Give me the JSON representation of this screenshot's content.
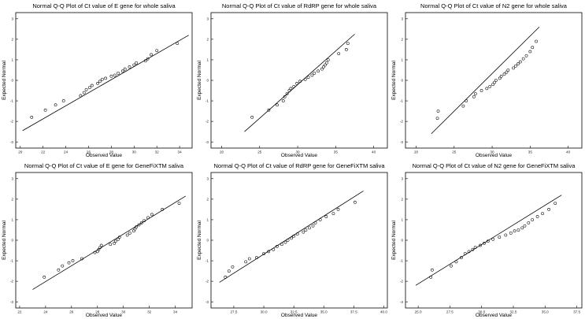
{
  "chart_data": [
    {
      "type": "scatter",
      "title": "Normal Q-Q Plot of Ct value of E gene for whole saliva",
      "xlabel": "Observed Value",
      "ylabel": "Expected Normal",
      "xlim": [
        19.6,
        35.1
      ],
      "ylim": [
        -3.3,
        3.3
      ],
      "xticks": [
        20,
        22,
        24,
        26,
        28,
        30,
        32,
        34
      ],
      "yticks": [
        3,
        2,
        1,
        0,
        -1,
        -2,
        -3
      ],
      "ytick_labels": [
        "3",
        "2",
        "1",
        "0",
        "-1",
        "-2",
        "-3"
      ],
      "line": {
        "x": [
          20.2,
          34.8
        ],
        "y": [
          -2.45,
          2.2
        ]
      },
      "points": [
        {
          "x": 21.0,
          "y": -1.8
        },
        {
          "x": 22.2,
          "y": -1.45
        },
        {
          "x": 23.1,
          "y": -1.2
        },
        {
          "x": 23.8,
          "y": -1.0
        },
        {
          "x": 25.3,
          "y": -0.75
        },
        {
          "x": 25.6,
          "y": -0.6
        },
        {
          "x": 25.8,
          "y": -0.45
        },
        {
          "x": 26.1,
          "y": -0.35
        },
        {
          "x": 26.3,
          "y": -0.25
        },
        {
          "x": 26.8,
          "y": -0.15
        },
        {
          "x": 27.0,
          "y": -0.05
        },
        {
          "x": 27.2,
          "y": 0.05
        },
        {
          "x": 27.5,
          "y": 0.1
        },
        {
          "x": 28.0,
          "y": 0.2
        },
        {
          "x": 28.3,
          "y": 0.25
        },
        {
          "x": 28.6,
          "y": 0.35
        },
        {
          "x": 29.0,
          "y": 0.45
        },
        {
          "x": 29.2,
          "y": 0.55
        },
        {
          "x": 29.6,
          "y": 0.65
        },
        {
          "x": 30.0,
          "y": 0.75
        },
        {
          "x": 30.2,
          "y": 0.85
        },
        {
          "x": 31.0,
          "y": 0.95
        },
        {
          "x": 31.2,
          "y": 1.05
        },
        {
          "x": 31.5,
          "y": 1.25
        },
        {
          "x": 32.0,
          "y": 1.45
        },
        {
          "x": 33.8,
          "y": 1.8
        }
      ]
    },
    {
      "type": "scatter",
      "title": "Normal Q-Q Plot of Ct value of RdRP gene for whole saliva",
      "xlabel": "Observed Value",
      "ylabel": "Expected Normal",
      "xlim": [
        18.6,
        41.8
      ],
      "ylim": [
        -3.3,
        3.3
      ],
      "xticks": [
        20,
        25,
        30,
        35,
        40
      ],
      "yticks": [
        3,
        2,
        1,
        0,
        -1,
        -2,
        -3
      ],
      "ytick_labels": [
        "3",
        "2",
        "1",
        "0",
        "-1",
        "-2",
        "-3"
      ],
      "line": {
        "x": [
          23.0,
          37.5
        ],
        "y": [
          -2.5,
          2.25
        ]
      },
      "points": [
        {
          "x": 24.0,
          "y": -1.8
        },
        {
          "x": 26.2,
          "y": -1.45
        },
        {
          "x": 27.3,
          "y": -1.2
        },
        {
          "x": 28.1,
          "y": -1.0
        },
        {
          "x": 28.3,
          "y": -0.8
        },
        {
          "x": 28.6,
          "y": -0.65
        },
        {
          "x": 28.9,
          "y": -0.5
        },
        {
          "x": 29.1,
          "y": -0.4
        },
        {
          "x": 29.5,
          "y": -0.3
        },
        {
          "x": 29.9,
          "y": -0.15
        },
        {
          "x": 30.3,
          "y": -0.05
        },
        {
          "x": 31.0,
          "y": 0.05
        },
        {
          "x": 31.4,
          "y": 0.15
        },
        {
          "x": 31.9,
          "y": 0.25
        },
        {
          "x": 32.2,
          "y": 0.35
        },
        {
          "x": 32.7,
          "y": 0.45
        },
        {
          "x": 33.2,
          "y": 0.55
        },
        {
          "x": 33.4,
          "y": 0.65
        },
        {
          "x": 33.6,
          "y": 0.75
        },
        {
          "x": 33.8,
          "y": 0.85
        },
        {
          "x": 34.0,
          "y": 1.0
        },
        {
          "x": 35.4,
          "y": 1.3
        },
        {
          "x": 36.4,
          "y": 1.5
        },
        {
          "x": 36.6,
          "y": 1.8
        }
      ]
    },
    {
      "type": "scatter",
      "title": "Normal Q-Q Plot of Ct value of N2 gene for whole saliva",
      "xlabel": "Observed Value",
      "ylabel": "Expected Normal",
      "xlim": [
        18.6,
        41.8
      ],
      "ylim": [
        -3.3,
        3.3
      ],
      "xticks": [
        20,
        25,
        30,
        35,
        40
      ],
      "yticks": [
        3,
        2,
        1,
        0,
        -1,
        -2,
        -3
      ],
      "ytick_labels": [
        "3",
        "2",
        "1",
        "0",
        "-1",
        "-2",
        "-3"
      ],
      "line": {
        "x": [
          22.0,
          36.2
        ],
        "y": [
          -2.6,
          2.6
        ]
      },
      "points": [
        {
          "x": 22.8,
          "y": -1.85
        },
        {
          "x": 22.9,
          "y": -1.5
        },
        {
          "x": 26.2,
          "y": -1.25
        },
        {
          "x": 26.6,
          "y": -1.0
        },
        {
          "x": 27.6,
          "y": -0.8
        },
        {
          "x": 27.8,
          "y": -0.65
        },
        {
          "x": 28.6,
          "y": -0.5
        },
        {
          "x": 29.3,
          "y": -0.4
        },
        {
          "x": 29.7,
          "y": -0.3
        },
        {
          "x": 30.1,
          "y": -0.2
        },
        {
          "x": 30.3,
          "y": -0.1
        },
        {
          "x": 30.5,
          "y": 0.0
        },
        {
          "x": 31.0,
          "y": 0.1
        },
        {
          "x": 31.2,
          "y": 0.2
        },
        {
          "x": 31.6,
          "y": 0.3
        },
        {
          "x": 31.9,
          "y": 0.4
        },
        {
          "x": 32.1,
          "y": 0.5
        },
        {
          "x": 32.8,
          "y": 0.6
        },
        {
          "x": 33.1,
          "y": 0.7
        },
        {
          "x": 33.4,
          "y": 0.8
        },
        {
          "x": 33.7,
          "y": 0.9
        },
        {
          "x": 34.1,
          "y": 1.05
        },
        {
          "x": 34.5,
          "y": 1.2
        },
        {
          "x": 35.0,
          "y": 1.4
        },
        {
          "x": 35.3,
          "y": 1.6
        },
        {
          "x": 35.8,
          "y": 1.9
        }
      ]
    },
    {
      "type": "scatter",
      "title": "Normal Q-Q Plot of Ct value of E gene for GeneFiXTM saliva",
      "xlabel": "Observed Value",
      "ylabel": "Expected Normal",
      "xlim": [
        21.7,
        35.3
      ],
      "ylim": [
        -3.3,
        3.3
      ],
      "xticks": [
        22,
        24,
        26,
        28,
        30,
        32,
        34
      ],
      "yticks": [
        3,
        2,
        1,
        0,
        -1,
        -2,
        -3
      ],
      "ytick_labels": [
        "3",
        "2",
        "1",
        "0",
        "-1",
        "-2",
        "-3"
      ],
      "line": {
        "x": [
          23.0,
          34.8
        ],
        "y": [
          -2.4,
          2.15
        ]
      },
      "points": [
        {
          "x": 23.9,
          "y": -1.8
        },
        {
          "x": 25.0,
          "y": -1.45
        },
        {
          "x": 25.3,
          "y": -1.25
        },
        {
          "x": 25.8,
          "y": -1.1
        },
        {
          "x": 26.1,
          "y": -1.0
        },
        {
          "x": 26.8,
          "y": -0.9
        },
        {
          "x": 27.8,
          "y": -0.6
        },
        {
          "x": 28.0,
          "y": -0.55
        },
        {
          "x": 28.1,
          "y": -0.45
        },
        {
          "x": 28.2,
          "y": -0.35
        },
        {
          "x": 28.3,
          "y": -0.25
        },
        {
          "x": 29.0,
          "y": -0.2
        },
        {
          "x": 29.3,
          "y": -0.15
        },
        {
          "x": 29.4,
          "y": -0.05
        },
        {
          "x": 29.6,
          "y": 0.05
        },
        {
          "x": 29.7,
          "y": 0.15
        },
        {
          "x": 30.3,
          "y": 0.25
        },
        {
          "x": 30.5,
          "y": 0.35
        },
        {
          "x": 30.8,
          "y": 0.45
        },
        {
          "x": 30.9,
          "y": 0.55
        },
        {
          "x": 31.0,
          "y": 0.65
        },
        {
          "x": 31.2,
          "y": 0.75
        },
        {
          "x": 31.4,
          "y": 0.85
        },
        {
          "x": 31.6,
          "y": 0.95
        },
        {
          "x": 31.9,
          "y": 1.1
        },
        {
          "x": 32.2,
          "y": 1.25
        },
        {
          "x": 33.0,
          "y": 1.5
        },
        {
          "x": 34.3,
          "y": 1.8
        }
      ]
    },
    {
      "type": "scatter",
      "title": "Normal Q-Q Plot of Ct value of RdRP gene for GeneFiXTM saliva",
      "xlabel": "Observed Value",
      "ylabel": "Expected Normal",
      "xlim": [
        25.6,
        40.3
      ],
      "ylim": [
        -3.3,
        3.3
      ],
      "xticks": [
        27.5,
        30.0,
        32.5,
        35.0,
        37.5,
        40.0
      ],
      "xtick_labels": [
        "27.5",
        "30.0",
        "32.5",
        "35.0",
        "37.5",
        "40.0"
      ],
      "yticks": [
        3,
        2,
        1,
        0,
        -1,
        -2,
        -3
      ],
      "ytick_labels": [
        "3",
        "2",
        "1",
        "0",
        "-1",
        "-2",
        "-3"
      ],
      "line": {
        "x": [
          26.3,
          38.3
        ],
        "y": [
          -2.05,
          2.4
        ]
      },
      "points": [
        {
          "x": 26.8,
          "y": -1.8
        },
        {
          "x": 27.1,
          "y": -1.5
        },
        {
          "x": 27.4,
          "y": -1.3
        },
        {
          "x": 28.5,
          "y": -1.05
        },
        {
          "x": 28.8,
          "y": -0.9
        },
        {
          "x": 29.4,
          "y": -0.85
        },
        {
          "x": 30.0,
          "y": -0.65
        },
        {
          "x": 30.4,
          "y": -0.55
        },
        {
          "x": 30.8,
          "y": -0.45
        },
        {
          "x": 31.1,
          "y": -0.3
        },
        {
          "x": 31.5,
          "y": -0.2
        },
        {
          "x": 31.8,
          "y": -0.1
        },
        {
          "x": 32.0,
          "y": 0.0
        },
        {
          "x": 32.3,
          "y": 0.1
        },
        {
          "x": 32.5,
          "y": 0.2
        },
        {
          "x": 32.8,
          "y": 0.3
        },
        {
          "x": 33.3,
          "y": 0.4
        },
        {
          "x": 33.5,
          "y": 0.5
        },
        {
          "x": 33.8,
          "y": 0.6
        },
        {
          "x": 34.1,
          "y": 0.7
        },
        {
          "x": 34.3,
          "y": 0.85
        },
        {
          "x": 34.7,
          "y": 1.0
        },
        {
          "x": 35.2,
          "y": 1.15
        },
        {
          "x": 35.8,
          "y": 1.3
        },
        {
          "x": 36.2,
          "y": 1.5
        },
        {
          "x": 37.6,
          "y": 1.85
        }
      ]
    },
    {
      "type": "scatter",
      "title": "Normal Q-Q Plot of Ct value of N2 gene for GeneFiXTM saliva",
      "xlabel": "Observed Value",
      "ylabel": "Expected Normal",
      "xlim": [
        24.0,
        37.9
      ],
      "ylim": [
        -3.3,
        3.3
      ],
      "xticks": [
        25.0,
        27.5,
        30.0,
        32.5,
        35.0,
        37.5
      ],
      "xtick_labels": [
        "25.0",
        "27.5",
        "30.0",
        "32.5",
        "35.0",
        "37.5"
      ],
      "yticks": [
        3,
        2,
        1,
        0,
        -1,
        -2,
        -3
      ],
      "ytick_labels": [
        "3",
        "2",
        "1",
        "0",
        "-1",
        "-2",
        "-3"
      ],
      "line": {
        "x": [
          24.8,
          36.3
        ],
        "y": [
          -2.2,
          2.2
        ]
      },
      "points": [
        {
          "x": 26.0,
          "y": -1.8
        },
        {
          "x": 26.1,
          "y": -1.45
        },
        {
          "x": 27.6,
          "y": -1.25
        },
        {
          "x": 28.0,
          "y": -1.05
        },
        {
          "x": 28.4,
          "y": -0.85
        },
        {
          "x": 28.7,
          "y": -0.65
        },
        {
          "x": 29.0,
          "y": -0.55
        },
        {
          "x": 29.3,
          "y": -0.45
        },
        {
          "x": 29.5,
          "y": -0.35
        },
        {
          "x": 29.9,
          "y": -0.25
        },
        {
          "x": 30.2,
          "y": -0.15
        },
        {
          "x": 30.5,
          "y": -0.05
        },
        {
          "x": 30.9,
          "y": 0.05
        },
        {
          "x": 31.4,
          "y": 0.15
        },
        {
          "x": 31.9,
          "y": 0.25
        },
        {
          "x": 32.3,
          "y": 0.35
        },
        {
          "x": 32.6,
          "y": 0.45
        },
        {
          "x": 32.9,
          "y": 0.5
        },
        {
          "x": 33.2,
          "y": 0.6
        },
        {
          "x": 33.4,
          "y": 0.7
        },
        {
          "x": 33.7,
          "y": 0.85
        },
        {
          "x": 34.0,
          "y": 1.0
        },
        {
          "x": 34.4,
          "y": 1.15
        },
        {
          "x": 34.8,
          "y": 1.3
        },
        {
          "x": 35.3,
          "y": 1.5
        },
        {
          "x": 35.8,
          "y": 1.8
        }
      ]
    }
  ]
}
